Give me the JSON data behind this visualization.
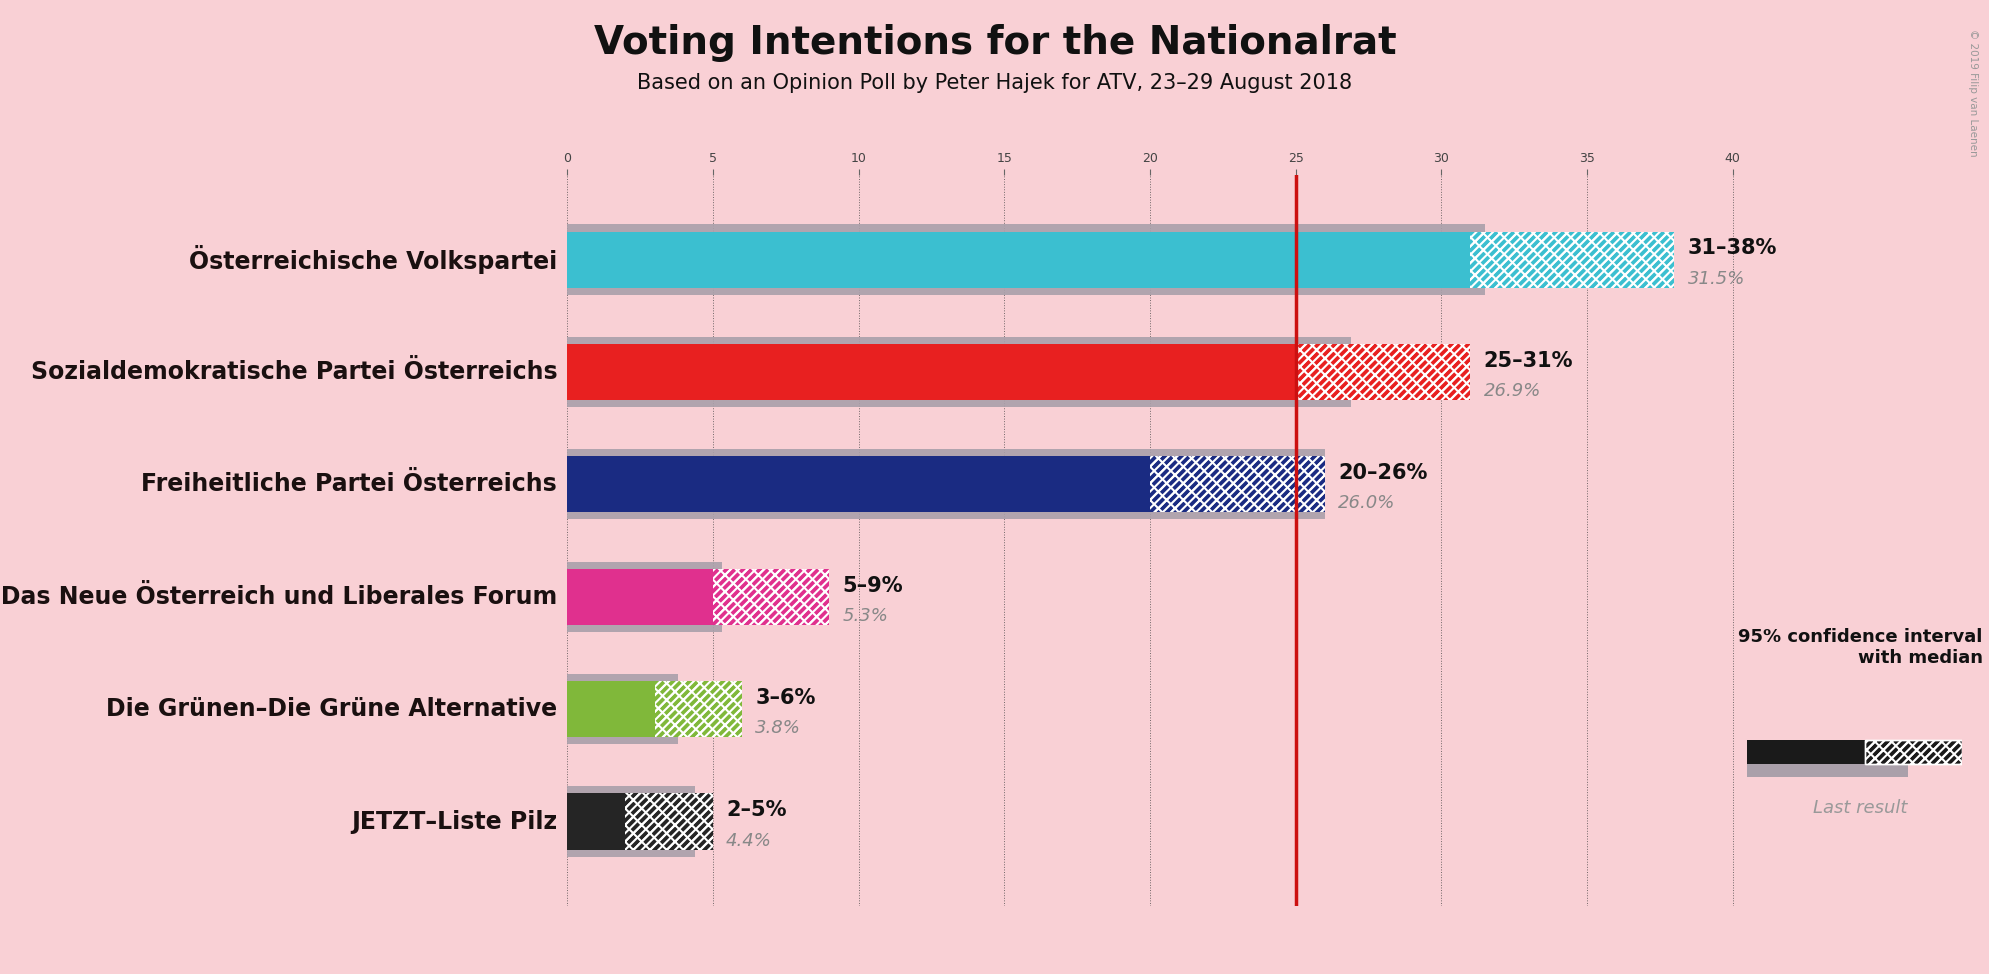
{
  "title": "Voting Intentions for the Nationalrat",
  "subtitle": "Based on an Opinion Poll by Peter Hajek for ATV, 23–29 August 2018",
  "background_color": "#f9d0d5",
  "parties": [
    "Österreichische Volkspartei",
    "Sozialdemokratische Partei Österreichs",
    "Freiheitliche Partei Österreichs",
    "NEOS–Das Neue Österreich und Liberales Forum",
    "Die Grünen–Die Grüne Alternative",
    "JETZT–Liste Pilz"
  ],
  "ci_low": [
    31,
    25,
    20,
    5,
    3,
    2
  ],
  "ci_high": [
    38,
    31,
    26,
    9,
    6,
    5
  ],
  "median": [
    31.5,
    26.9,
    26.0,
    5.3,
    3.8,
    4.4
  ],
  "last_result": [
    31.5,
    26.9,
    26.0,
    5.3,
    3.8,
    4.4
  ],
  "ci_labels": [
    "31–38%",
    "25–31%",
    "20–26%",
    "5–9%",
    "3–6%",
    "2–5%"
  ],
  "median_labels": [
    "31.5%",
    "26.9%",
    "26.0%",
    "5.3%",
    "3.8%",
    "4.4%"
  ],
  "colors": [
    "#3bbfd0",
    "#e82020",
    "#1a2b82",
    "#e0308e",
    "#80b83a",
    "#252525"
  ],
  "last_result_color": "#aaa0aa",
  "median_line_color": "#cc1010",
  "median_line_value": 25,
  "xlim_max": 42,
  "grid_values": [
    0,
    5,
    10,
    15,
    20,
    25,
    30,
    35,
    40
  ],
  "title_fontsize": 28,
  "subtitle_fontsize": 15,
  "party_fontsize": 17,
  "label_fontsize": 16,
  "bar_height": 0.5,
  "copyright": "© 2019 Filip van Laenen",
  "legend_confidence_text": "95% confidence interval\nwith median",
  "legend_last_result_text": "Last result"
}
